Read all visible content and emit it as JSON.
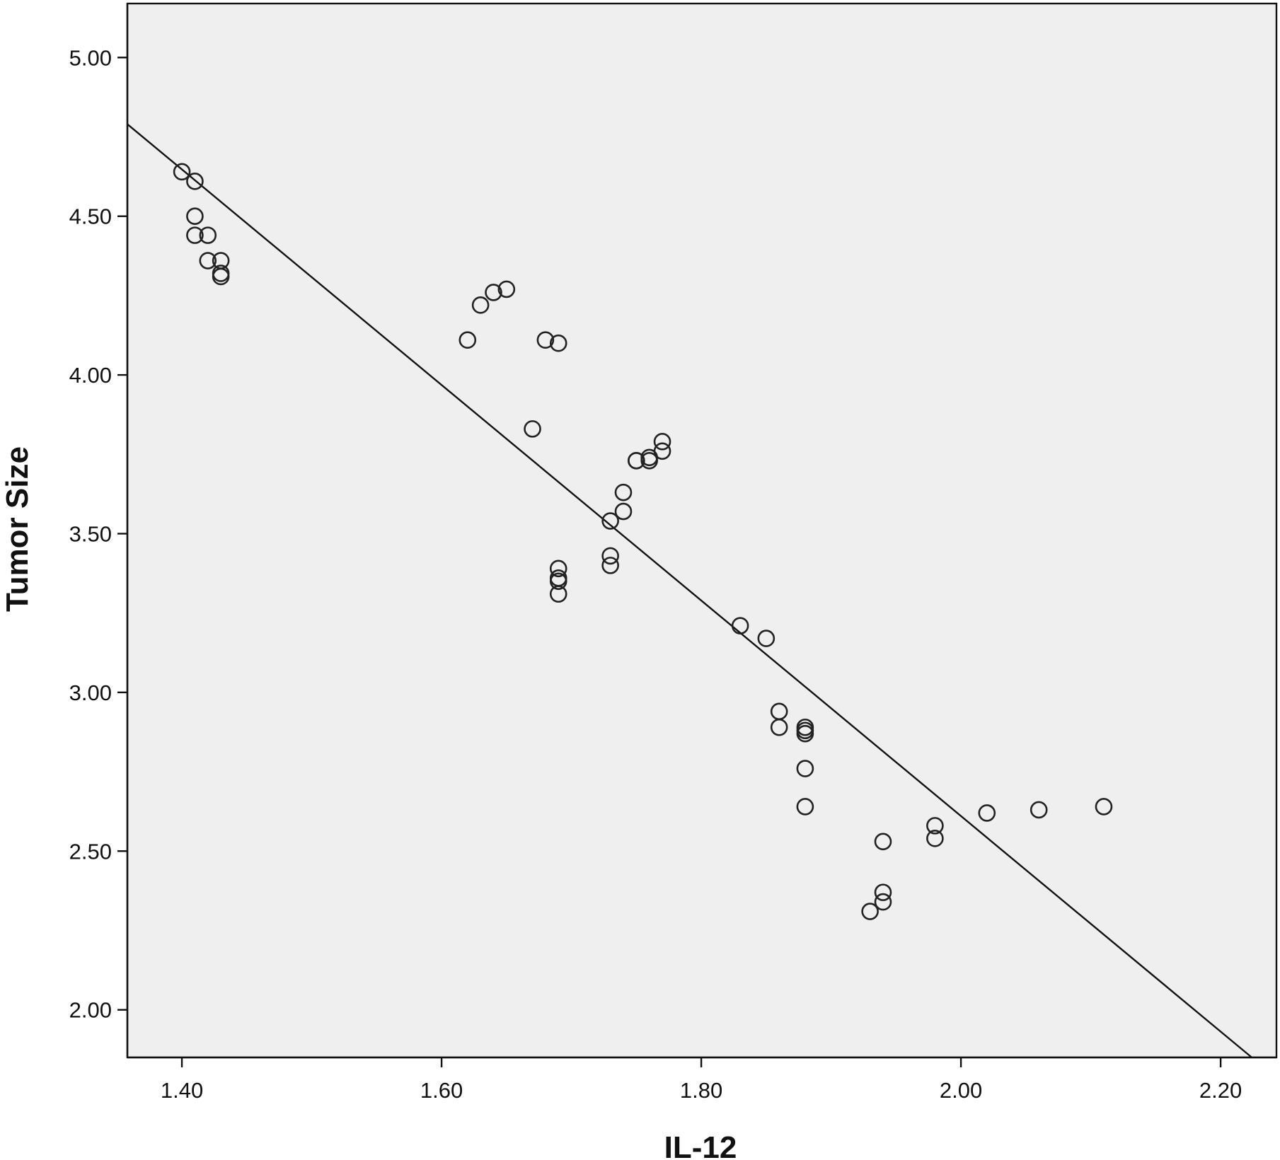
{
  "chart_data": {
    "type": "scatter",
    "title": "",
    "xlabel": "IL-12",
    "ylabel": "Tumor Size",
    "xlim": [
      1.358,
      2.243
    ],
    "ylim": [
      1.85,
      5.17
    ],
    "x_ticks": [
      "1.40",
      "1.60",
      "1.80",
      "2.00",
      "2.20"
    ],
    "y_ticks": [
      "2.00",
      "2.50",
      "3.00",
      "3.50",
      "4.00",
      "4.50",
      "5.00"
    ],
    "grid": false,
    "background": "#efefef",
    "series": [
      {
        "points": [
          [
            1.4,
            4.64
          ],
          [
            1.41,
            4.61
          ],
          [
            1.41,
            4.5
          ],
          [
            1.41,
            4.44
          ],
          [
            1.42,
            4.44
          ],
          [
            1.42,
            4.36
          ],
          [
            1.43,
            4.36
          ],
          [
            1.43,
            4.32
          ],
          [
            1.43,
            4.31
          ],
          [
            1.62,
            4.11
          ],
          [
            1.63,
            4.22
          ],
          [
            1.64,
            4.26
          ],
          [
            1.65,
            4.27
          ],
          [
            1.68,
            4.11
          ],
          [
            1.69,
            4.1
          ],
          [
            1.67,
            3.83
          ],
          [
            1.75,
            3.73
          ],
          [
            1.75,
            3.73
          ],
          [
            1.76,
            3.74
          ],
          [
            1.76,
            3.73
          ],
          [
            1.77,
            3.79
          ],
          [
            1.77,
            3.76
          ],
          [
            1.74,
            3.63
          ],
          [
            1.74,
            3.57
          ],
          [
            1.73,
            3.54
          ],
          [
            1.73,
            3.43
          ],
          [
            1.73,
            3.4
          ],
          [
            1.69,
            3.39
          ],
          [
            1.69,
            3.36
          ],
          [
            1.69,
            3.35
          ],
          [
            1.69,
            3.31
          ],
          [
            1.83,
            3.21
          ],
          [
            1.85,
            3.17
          ],
          [
            1.86,
            2.94
          ],
          [
            1.86,
            2.89
          ],
          [
            1.88,
            2.89
          ],
          [
            1.88,
            2.88
          ],
          [
            1.88,
            2.87
          ],
          [
            1.88,
            2.76
          ],
          [
            1.88,
            2.64
          ],
          [
            1.94,
            2.53
          ],
          [
            1.94,
            2.37
          ],
          [
            1.94,
            2.34
          ],
          [
            1.93,
            2.31
          ],
          [
            1.98,
            2.58
          ],
          [
            1.98,
            2.54
          ],
          [
            2.02,
            2.62
          ],
          [
            2.06,
            2.63
          ],
          [
            2.11,
            2.64
          ]
        ]
      }
    ],
    "fit_line": [
      [
        1.358,
        4.79
      ],
      [
        2.224,
        1.85
      ]
    ]
  }
}
